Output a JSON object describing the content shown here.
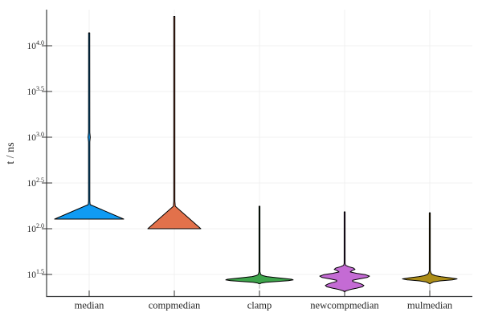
{
  "figure": {
    "background": "#ffffff",
    "grid_color": "#f0f0f0",
    "spine_color": "#3a3c3e",
    "tick_color": "#333333",
    "label_color": "#262626",
    "outline_color": "#000000"
  },
  "chart_data": {
    "type": "violin",
    "title": "",
    "xlabel": "",
    "ylabel": "t / ns",
    "yscale": "log10",
    "grid": true,
    "legend": false,
    "ylim_log10": [
      1.25,
      4.38
    ],
    "y_tick_base": "10",
    "y_ticks": [
      {
        "exponent": "4.0",
        "log10": 4.0
      },
      {
        "exponent": "3.5",
        "log10": 3.5
      },
      {
        "exponent": "3.0",
        "log10": 3.0
      },
      {
        "exponent": "2.5",
        "log10": 2.5
      },
      {
        "exponent": "2.0",
        "log10": 2.0
      },
      {
        "exponent": "1.5",
        "log10": 1.5
      }
    ],
    "categories": [
      "median",
      "compmedian",
      "clamp",
      "newcompmedian",
      "mulmedian"
    ],
    "series": [
      {
        "name": "median",
        "color": "#109BF3",
        "body_range_ns": [
          126,
          183
        ],
        "peak_ns": 128,
        "tail_max_ns": 13800,
        "profile": [
          [
            4.14,
            0.7
          ],
          [
            3.05,
            0.8
          ],
          [
            3.0,
            1.4
          ],
          [
            2.95,
            0.8
          ],
          [
            2.3,
            0.8
          ],
          [
            2.263,
            1.2
          ],
          [
            2.105,
            43
          ]
        ]
      },
      {
        "name": "compmedian",
        "color": "#E2714B",
        "body_range_ns": [
          100,
          176
        ],
        "peak_ns": 100,
        "tail_max_ns": 20900,
        "profile": [
          [
            4.32,
            0.7
          ],
          [
            2.3,
            0.7
          ],
          [
            2.246,
            1.2
          ],
          [
            2.0,
            33
          ]
        ]
      },
      {
        "name": "clamp",
        "color": "#3DA44B",
        "body_range_ns": [
          23,
          32
        ],
        "peak_ns": 27,
        "tail_max_ns": 176,
        "undertail_log10": [
          1.4,
          1.345
        ],
        "profile": [
          [
            2.246,
            0.6
          ],
          [
            1.53,
            0.6
          ],
          [
            1.5,
            1.5
          ],
          [
            1.488,
            4
          ],
          [
            1.477,
            9
          ],
          [
            1.466,
            20
          ],
          [
            1.455,
            32
          ],
          [
            1.447,
            40
          ],
          [
            1.44,
            42
          ],
          [
            1.432,
            36
          ],
          [
            1.424,
            22
          ],
          [
            1.415,
            8
          ],
          [
            1.405,
            2
          ],
          [
            1.4,
            1
          ]
        ]
      },
      {
        "name": "newcompmedian",
        "color": "#C46BD4",
        "body_range_ns": [
          20,
          40
        ],
        "peak_ns": 30,
        "tail_max_ns": 153,
        "profile": [
          [
            2.184,
            0.6
          ],
          [
            1.62,
            0.6
          ],
          [
            1.6,
            1.2
          ],
          [
            1.585,
            5
          ],
          [
            1.57,
            11
          ],
          [
            1.555,
            13
          ],
          [
            1.54,
            9
          ],
          [
            1.527,
            7
          ],
          [
            1.512,
            15
          ],
          [
            1.497,
            26
          ],
          [
            1.482,
            31
          ],
          [
            1.467,
            28
          ],
          [
            1.45,
            17
          ],
          [
            1.437,
            10
          ],
          [
            1.424,
            10
          ],
          [
            1.41,
            16
          ],
          [
            1.395,
            21
          ],
          [
            1.38,
            24
          ],
          [
            1.365,
            22
          ],
          [
            1.35,
            15
          ],
          [
            1.335,
            7
          ],
          [
            1.32,
            1.5
          ],
          [
            1.31,
            0.4
          ]
        ]
      },
      {
        "name": "mulmedian",
        "color": "#AC8D18",
        "body_range_ns": [
          25,
          33
        ],
        "peak_ns": 28,
        "tail_max_ns": 150,
        "undertail_log10": [
          1.4,
          1.305
        ],
        "profile": [
          [
            2.175,
            0.6
          ],
          [
            1.54,
            0.6
          ],
          [
            1.515,
            1.5
          ],
          [
            1.5,
            3
          ],
          [
            1.487,
            7
          ],
          [
            1.475,
            14
          ],
          [
            1.463,
            26
          ],
          [
            1.452,
            34
          ],
          [
            1.441,
            28
          ],
          [
            1.43,
            13
          ],
          [
            1.419,
            5
          ],
          [
            1.408,
            2
          ],
          [
            1.4,
            0.8
          ]
        ]
      }
    ]
  }
}
